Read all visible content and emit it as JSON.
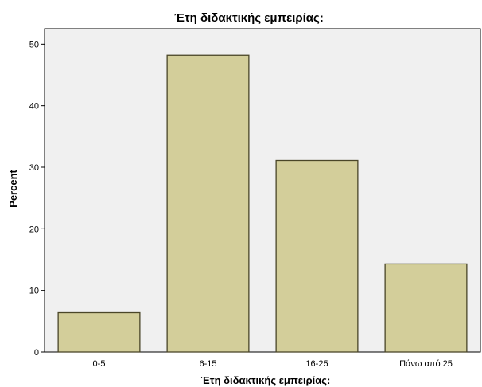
{
  "chart_data": {
    "type": "bar",
    "title": "Έτη διδακτικής εμπειρίας:",
    "xlabel": "Έτη διδακτικής εμπειρίας:",
    "ylabel": "Percent",
    "categories": [
      "0-5",
      "6-15",
      "16-25",
      "Πάνω από 25"
    ],
    "values": [
      6.4,
      48.2,
      31.1,
      14.3
    ],
    "ylim": [
      0,
      52.5
    ],
    "yticks": [
      "0",
      "10",
      "20",
      "30",
      "40",
      "50"
    ],
    "grid": false,
    "colors": {
      "bar_fill": "#d3ce9a",
      "bar_stroke": "#4a4628",
      "plot_background": "#f0f0f0"
    }
  }
}
